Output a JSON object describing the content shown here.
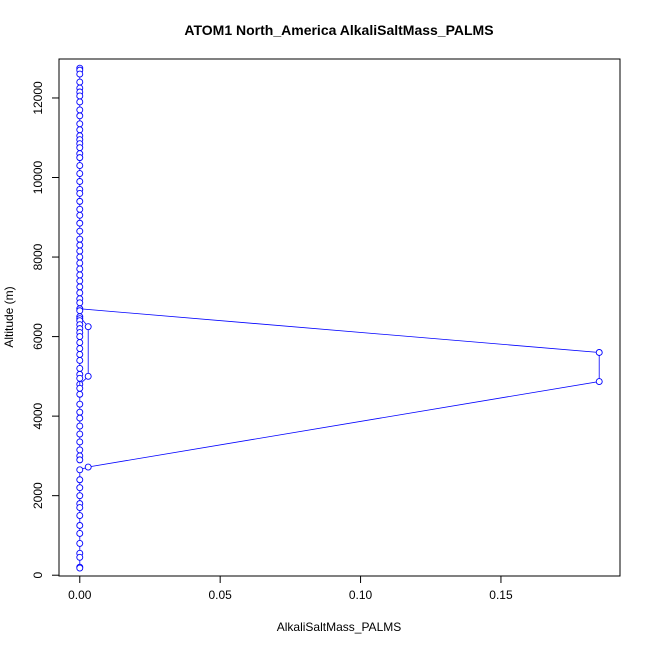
{
  "chart_data": {
    "type": "line",
    "title": "ATOM1 North_America AlkaliSaltMass_PALMS",
    "xlabel": "AlkaliSaltMass_PALMS",
    "ylabel": "Altitude (m)",
    "xlim": [
      -0.0074,
      0.1924
    ],
    "ylim": [
      -20,
      12980
    ],
    "x_ticks": [
      0.0,
      0.05,
      0.1,
      0.15
    ],
    "x_tick_labels": [
      "0.00",
      "0.05",
      "0.10",
      "0.15"
    ],
    "y_ticks": [
      0,
      2000,
      4000,
      6000,
      8000,
      10000,
      12000
    ],
    "y_tick_labels": [
      "0",
      "2000",
      "4000",
      "6000",
      "8000",
      "10000",
      "12000"
    ],
    "grid": false,
    "series_color": "#0000ff",
    "series": [
      {
        "points": [
          [
            0,
            12750
          ],
          [
            0,
            12700
          ],
          [
            0,
            12600
          ],
          [
            0,
            12400
          ],
          [
            0,
            12250
          ],
          [
            0,
            12150
          ],
          [
            0,
            12050
          ],
          [
            0,
            11900
          ],
          [
            0,
            11700
          ],
          [
            0,
            11550
          ],
          [
            0,
            11350
          ],
          [
            0,
            11200
          ],
          [
            0,
            11050
          ],
          [
            0,
            10950
          ],
          [
            0,
            10850
          ],
          [
            0,
            10750
          ],
          [
            0,
            10600
          ],
          [
            0,
            10500
          ],
          [
            0,
            10300
          ],
          [
            0,
            10100
          ],
          [
            0,
            9900
          ],
          [
            0,
            9700
          ],
          [
            0,
            9600
          ],
          [
            0,
            9400
          ],
          [
            0,
            9200
          ],
          [
            0,
            9050
          ],
          [
            0,
            8850
          ],
          [
            0,
            8650
          ],
          [
            0,
            8450
          ],
          [
            0,
            8300
          ],
          [
            0,
            8150
          ],
          [
            0,
            8000
          ],
          [
            0,
            7850
          ],
          [
            0,
            7700
          ],
          [
            0,
            7550
          ],
          [
            0,
            7400
          ],
          [
            0,
            7250
          ],
          [
            0,
            7100
          ],
          [
            0,
            6950
          ],
          [
            0,
            6850
          ],
          [
            0,
            6700
          ],
          [
            0.185,
            5600
          ],
          [
            0.185,
            4870
          ],
          [
            0.003,
            2720
          ],
          [
            0,
            2650
          ],
          [
            0,
            2400
          ],
          [
            0,
            2200
          ],
          [
            0,
            2000
          ],
          [
            0,
            1800
          ],
          [
            0,
            1700
          ],
          [
            0,
            1500
          ],
          [
            0,
            1250
          ],
          [
            0,
            1050
          ],
          [
            0,
            800
          ],
          [
            0,
            550
          ],
          [
            0,
            450
          ],
          [
            0,
            200
          ],
          [
            0,
            180
          ]
        ]
      },
      {
        "points": [
          [
            0,
            6650
          ],
          [
            0,
            6500
          ],
          [
            0.003,
            6250
          ],
          [
            0.003,
            5000
          ],
          [
            0,
            4800
          ],
          [
            0,
            4550
          ],
          [
            0,
            4300
          ],
          [
            0,
            4100
          ],
          [
            0,
            3950
          ],
          [
            0,
            3750
          ],
          [
            0,
            3550
          ],
          [
            0,
            3350
          ],
          [
            0,
            3150
          ],
          [
            0,
            3000
          ],
          [
            0,
            2900
          ]
        ]
      },
      {
        "points": [
          [
            0,
            6450
          ],
          [
            0,
            6400
          ],
          [
            0,
            6300
          ],
          [
            0,
            6200
          ],
          [
            0,
            6100
          ],
          [
            0,
            6000
          ],
          [
            0,
            5850
          ],
          [
            0,
            5700
          ],
          [
            0,
            5550
          ],
          [
            0,
            5400
          ],
          [
            0,
            5200
          ],
          [
            0,
            5050
          ],
          [
            0,
            4950
          ],
          [
            0,
            4700
          ]
        ]
      }
    ]
  }
}
